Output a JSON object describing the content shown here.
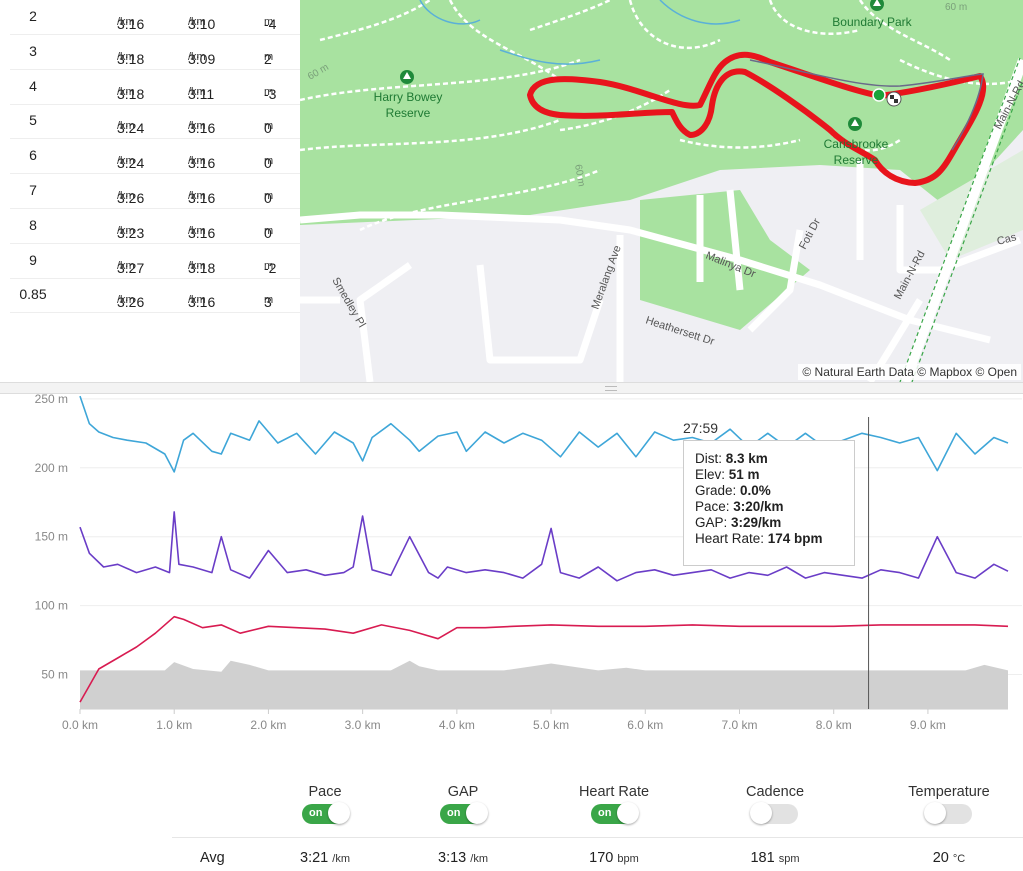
{
  "splits": {
    "rows": [
      {
        "num": "2",
        "pace": "3:16",
        "gap": "3:10",
        "elev": "-4"
      },
      {
        "num": "3",
        "pace": "3:18",
        "gap": "3:09",
        "elev": "2"
      },
      {
        "num": "4",
        "pace": "3:18",
        "gap": "3:11",
        "elev": "-3"
      },
      {
        "num": "5",
        "pace": "3:24",
        "gap": "3:16",
        "elev": "0"
      },
      {
        "num": "6",
        "pace": "3:24",
        "gap": "3:16",
        "elev": "0"
      },
      {
        "num": "7",
        "pace": "3:26",
        "gap": "3:16",
        "elev": "0"
      },
      {
        "num": "8",
        "pace": "3:23",
        "gap": "3:16",
        "elev": "0"
      },
      {
        "num": "9",
        "pace": "3:27",
        "gap": "3:18",
        "elev": "-2"
      },
      {
        "num": "0.85",
        "pace": "3:26",
        "gap": "3:16",
        "elev": "3"
      }
    ],
    "pace_unit": "/km",
    "elev_unit": "m"
  },
  "map": {
    "credit": "© Natural Earth Data © Mapbox © Open",
    "parks": [
      "Boundary Park",
      "Harry Bowey",
      "Reserve",
      "Carisbrooke",
      "Reserve"
    ],
    "streets": [
      "Main-N-Rd",
      "Main-N-Rd",
      "Foti Dr",
      "Malinya Dr",
      "Meralang Ave",
      "Smedley Pl",
      "Heathersett Dr",
      "Cas",
      "60 m",
      "60 m",
      "60 m"
    ],
    "route_color": "#e8141c",
    "park_color": "#a8e2a0"
  },
  "chart_data": {
    "type": "line",
    "xlabel": "",
    "ylabel": "",
    "x_ticks": [
      "0.0 km",
      "1.0 km",
      "2.0 km",
      "3.0 km",
      "4.0 km",
      "5.0 km",
      "6.0 km",
      "7.0 km",
      "8.0 km",
      "9.0 km"
    ],
    "y_ticks": [
      "250 m",
      "200 m",
      "150 m",
      "100 m",
      "50 m"
    ],
    "xlim": [
      0,
      9.85
    ],
    "ylim": [
      25,
      255
    ],
    "grid": true,
    "series": [
      {
        "name": "Pace",
        "color": "#3ea6d8",
        "x": [
          0,
          0.1,
          0.2,
          0.35,
          0.5,
          0.7,
          0.9,
          1.0,
          1.1,
          1.2,
          1.4,
          1.5,
          1.6,
          1.8,
          1.9,
          2.1,
          2.3,
          2.5,
          2.7,
          2.9,
          3.0,
          3.1,
          3.3,
          3.5,
          3.6,
          3.8,
          4.0,
          4.1,
          4.3,
          4.5,
          4.7,
          4.9,
          5.1,
          5.3,
          5.5,
          5.7,
          5.9,
          6.1,
          6.3,
          6.5,
          6.7,
          6.9,
          7.1,
          7.3,
          7.5,
          7.7,
          7.9,
          8.1,
          8.3,
          8.5,
          8.7,
          8.9,
          9.1,
          9.3,
          9.5,
          9.7,
          9.85
        ],
        "values": [
          252,
          232,
          226,
          222,
          220,
          218,
          210,
          197,
          220,
          225,
          212,
          210,
          225,
          220,
          234,
          218,
          225,
          210,
          226,
          218,
          205,
          222,
          232,
          220,
          212,
          223,
          226,
          212,
          226,
          218,
          225,
          220,
          208,
          226,
          215,
          225,
          208,
          226,
          220,
          222,
          218,
          228,
          215,
          225,
          215,
          225,
          215,
          220,
          225,
          222,
          218,
          222,
          198,
          225,
          210,
          222,
          218
        ]
      },
      {
        "name": "GAP",
        "color": "#6a3dc7",
        "x": [
          0,
          0.1,
          0.25,
          0.4,
          0.6,
          0.8,
          0.95,
          1.0,
          1.05,
          1.2,
          1.4,
          1.5,
          1.6,
          1.8,
          2.0,
          2.2,
          2.4,
          2.6,
          2.8,
          2.9,
          3.0,
          3.1,
          3.3,
          3.5,
          3.7,
          3.8,
          3.9,
          4.1,
          4.3,
          4.5,
          4.7,
          4.9,
          5.0,
          5.1,
          5.3,
          5.5,
          5.7,
          5.9,
          6.1,
          6.3,
          6.5,
          6.7,
          6.9,
          7.1,
          7.3,
          7.5,
          7.7,
          7.9,
          8.1,
          8.3,
          8.5,
          8.7,
          8.9,
          9.1,
          9.3,
          9.5,
          9.7,
          9.85
        ],
        "values": [
          157,
          138,
          128,
          130,
          124,
          128,
          124,
          168,
          130,
          128,
          124,
          150,
          126,
          120,
          140,
          124,
          126,
          122,
          124,
          128,
          165,
          126,
          122,
          150,
          124,
          120,
          128,
          124,
          126,
          124,
          120,
          130,
          156,
          124,
          120,
          128,
          118,
          124,
          126,
          122,
          124,
          126,
          120,
          124,
          122,
          128,
          120,
          124,
          122,
          120,
          126,
          124,
          120,
          150,
          124,
          120,
          130,
          125
        ]
      },
      {
        "name": "Heart Rate",
        "color": "#d81b51",
        "x": [
          0,
          0.1,
          0.2,
          0.4,
          0.6,
          0.8,
          1.0,
          1.1,
          1.3,
          1.5,
          1.7,
          2.0,
          2.3,
          2.6,
          2.9,
          3.2,
          3.5,
          3.8,
          4.0,
          4.3,
          4.6,
          5.0,
          5.5,
          6.0,
          6.5,
          7.0,
          7.5,
          8.0,
          8.5,
          9.0,
          9.5,
          9.85
        ],
        "values": [
          30,
          42,
          54,
          62,
          70,
          80,
          92,
          90,
          84,
          86,
          80,
          85,
          84,
          83,
          80,
          86,
          82,
          76,
          84,
          84,
          85,
          86,
          85,
          85,
          86,
          85,
          85,
          85,
          86,
          86,
          86,
          85
        ]
      },
      {
        "name": "Elevation",
        "color": "#d0d0d0",
        "x": [
          0,
          0.5,
          0.9,
          1.0,
          1.2,
          1.5,
          1.6,
          1.8,
          2.0,
          2.5,
          3.0,
          3.3,
          3.5,
          3.6,
          3.8,
          4.0,
          4.5,
          5.0,
          5.5,
          5.8,
          6.0,
          6.5,
          7.0,
          7.5,
          8.0,
          8.5,
          9.0,
          9.4,
          9.6,
          9.85
        ],
        "values": [
          53,
          53,
          53,
          59,
          54,
          52,
          60,
          57,
          53,
          53,
          53,
          53,
          60,
          56,
          53,
          53,
          53,
          58,
          53,
          55,
          53,
          53,
          53,
          53,
          53,
          53,
          53,
          53,
          57,
          53
        ]
      }
    ],
    "marker": {
      "x": 8.37,
      "time": "27:59"
    },
    "tooltip": {
      "time": "27:59",
      "rows": [
        {
          "label": "Dist: ",
          "value": "8.3 km"
        },
        {
          "label": "Elev: ",
          "value": "51 m"
        },
        {
          "label": "Grade: ",
          "value": "0.0%"
        },
        {
          "label": "Pace: ",
          "value": "3:20/km"
        },
        {
          "label": "GAP: ",
          "value": "3:29/km"
        },
        {
          "label": "Heart Rate: ",
          "value": "174 bpm"
        }
      ]
    }
  },
  "legend": {
    "items": [
      {
        "label": "Pace",
        "state": "on",
        "toggle_text": "on"
      },
      {
        "label": "GAP",
        "state": "on",
        "toggle_text": "on"
      },
      {
        "label": "Heart Rate",
        "state": "on",
        "toggle_text": "on"
      },
      {
        "label": "Cadence",
        "state": "off",
        "toggle_text": ""
      },
      {
        "label": "Temperature",
        "state": "off",
        "toggle_text": ""
      }
    ],
    "avg_label": "Avg",
    "avg": [
      {
        "value": "3:21",
        "unit": "/km"
      },
      {
        "value": "3:13",
        "unit": "/km"
      },
      {
        "value": "170",
        "unit": "bpm"
      },
      {
        "value": "181",
        "unit": "spm"
      },
      {
        "value": "20",
        "unit": "°C"
      }
    ]
  }
}
